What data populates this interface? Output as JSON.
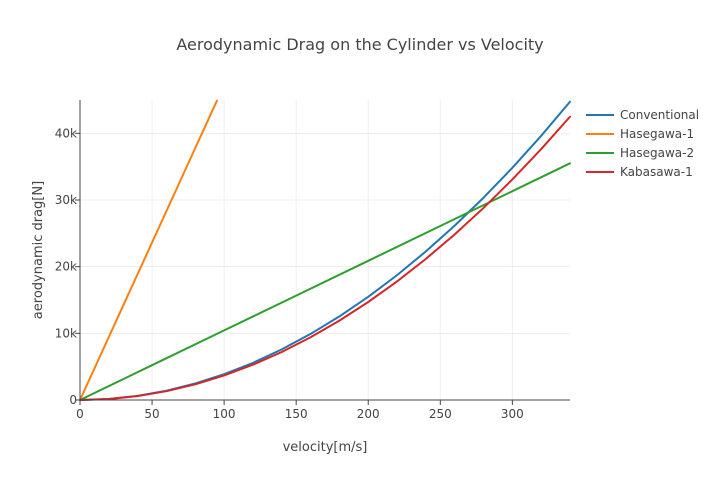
{
  "chart_data": {
    "type": "line",
    "title": "Aerodynamic Drag on the Cylinder vs Velocity",
    "xlabel": "velocity[m/s]",
    "ylabel": "aerodynamic drag[N]",
    "xlim": [
      0,
      340
    ],
    "ylim": [
      0,
      45000
    ],
    "x_ticks": [
      0,
      50,
      100,
      150,
      200,
      250,
      300
    ],
    "y_ticks": [
      0,
      10000,
      20000,
      30000,
      40000
    ],
    "x_tick_labels": [
      "0",
      "50",
      "100",
      "150",
      "200",
      "250",
      "300"
    ],
    "y_tick_labels": [
      "0",
      "10k",
      "20k",
      "30k",
      "40k"
    ],
    "grid": true,
    "legend_position": "right",
    "series": [
      {
        "name": "Conventional",
        "color": "#1f77b4",
        "x": [
          0,
          20,
          40,
          60,
          80,
          100,
          120,
          140,
          160,
          180,
          200,
          220,
          240,
          260,
          280,
          300,
          320,
          340
        ],
        "y": [
          0,
          155,
          620,
          1390,
          2480,
          3870,
          5570,
          7590,
          9910,
          12540,
          15480,
          18730,
          22290,
          26160,
          30340,
          34830,
          39630,
          44740
        ]
      },
      {
        "name": "Hasegawa-1",
        "color": "#ff7f0e",
        "x": [
          0,
          20,
          40,
          60,
          80,
          95
        ],
        "y": [
          0,
          9450,
          18900,
          28350,
          37800,
          44900
        ]
      },
      {
        "name": "Hasegawa-2",
        "color": "#2ca02c",
        "x": [
          0,
          50,
          100,
          150,
          200,
          250,
          300,
          340
        ],
        "y": [
          0,
          5220,
          10440,
          15660,
          20880,
          26100,
          31320,
          35500
        ]
      },
      {
        "name": "Kabasawa-1",
        "color": "#d62728",
        "x": [
          0,
          20,
          40,
          60,
          80,
          100,
          120,
          140,
          160,
          180,
          200,
          220,
          240,
          260,
          280,
          300,
          320,
          340
        ],
        "y": [
          0,
          147,
          590,
          1320,
          2350,
          3680,
          5290,
          7200,
          9410,
          11910,
          14700,
          17790,
          21170,
          24850,
          28810,
          33080,
          37640,
          42490
        ]
      }
    ]
  }
}
